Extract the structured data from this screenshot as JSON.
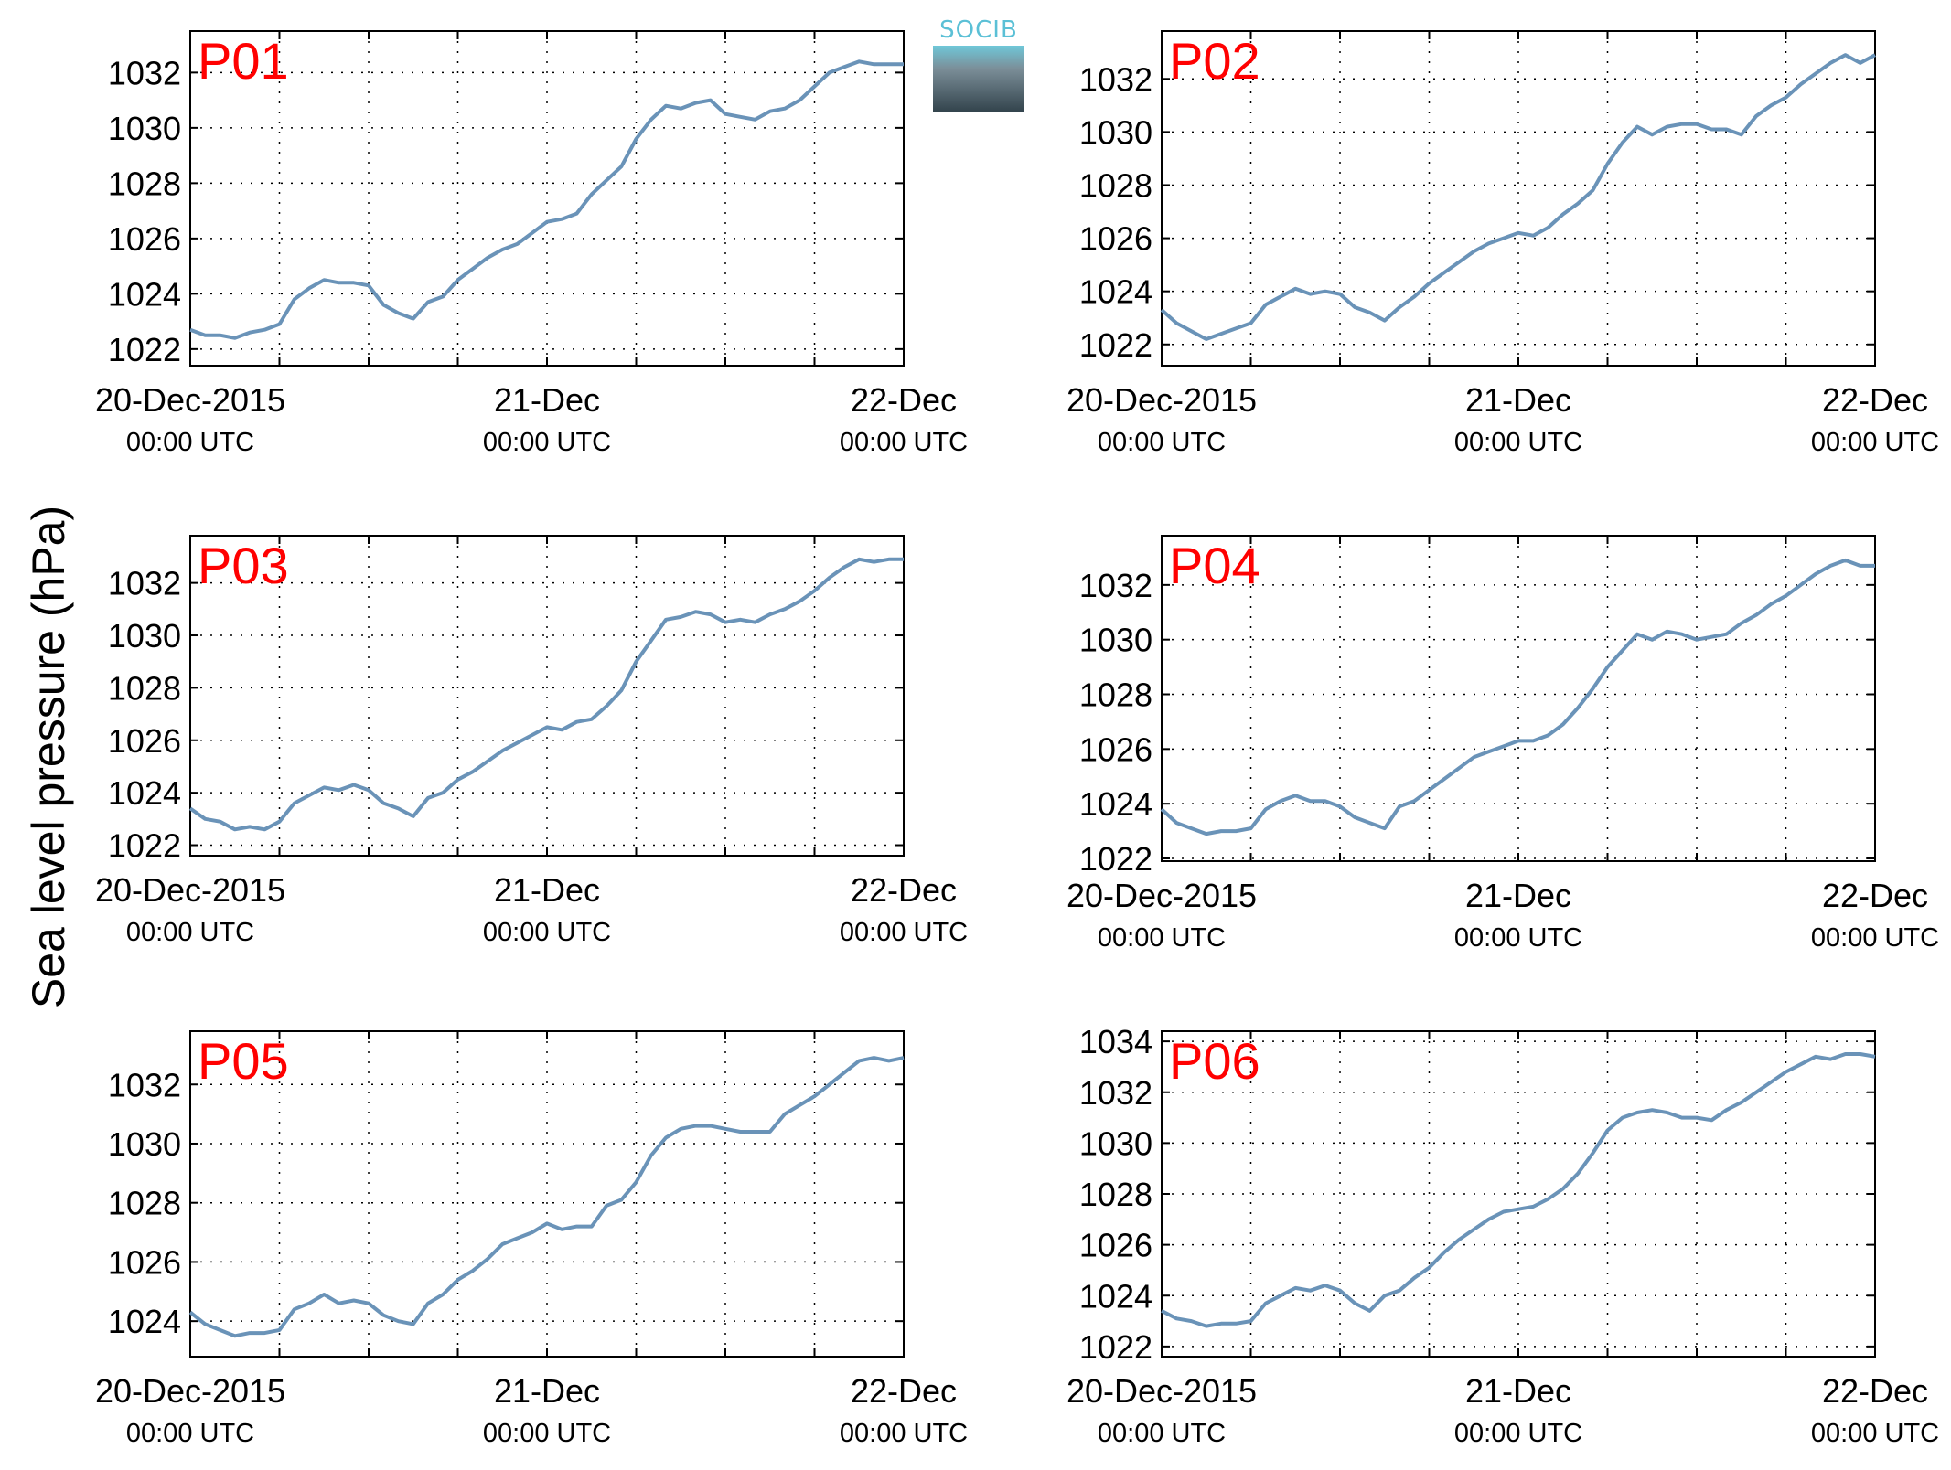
{
  "figure": {
    "ylabel": "Sea level pressure (hPa)",
    "logo_text": "SOCIB",
    "line_color": "#6a93b8",
    "label_color": "#ff0000"
  },
  "chart_data": [
    {
      "type": "line",
      "title": "P01",
      "x_unit": "hours since 20-Dec-2015 00:00 UTC",
      "xlim": [
        0,
        48
      ],
      "ylim": [
        1021.4,
        1033.5
      ],
      "yticks": [
        1022,
        1024,
        1026,
        1028,
        1030,
        1032
      ],
      "xticks": [
        {
          "top": "20-Dec-2015",
          "bottom": "00:00 UTC"
        },
        {
          "top": "21-Dec",
          "bottom": "00:00 UTC"
        },
        {
          "top": "22-Dec",
          "bottom": "00:00 UTC"
        }
      ],
      "grid": true,
      "series": [
        {
          "x": [
            0,
            1,
            2,
            3,
            4,
            5,
            6,
            7,
            8,
            9,
            10,
            11,
            12,
            13,
            14,
            15,
            16,
            17,
            18,
            19,
            20,
            21,
            22,
            23,
            24,
            25,
            26,
            27,
            28,
            29,
            30,
            31,
            32,
            33,
            34,
            35,
            36,
            37,
            38,
            39,
            40,
            41,
            42,
            43,
            44,
            45,
            46,
            47,
            48
          ],
          "y": [
            1022.7,
            1022.5,
            1022.5,
            1022.4,
            1022.6,
            1022.7,
            1022.9,
            1023.8,
            1024.2,
            1024.5,
            1024.4,
            1024.4,
            1024.3,
            1023.6,
            1023.3,
            1023.1,
            1023.7,
            1023.9,
            1024.5,
            1024.9,
            1025.3,
            1025.6,
            1025.8,
            1026.2,
            1026.6,
            1026.7,
            1026.9,
            1027.6,
            1028.1,
            1028.6,
            1029.6,
            1030.3,
            1030.8,
            1030.7,
            1030.9,
            1031.0,
            1030.5,
            1030.4,
            1030.3,
            1030.6,
            1030.7,
            1031.0,
            1031.5,
            1032.0,
            1032.2,
            1032.4,
            1032.3,
            1032.3,
            1032.3
          ]
        }
      ]
    },
    {
      "type": "line",
      "title": "P02",
      "x_unit": "hours since 20-Dec-2015 00:00 UTC",
      "xlim": [
        0,
        48
      ],
      "ylim": [
        1021.2,
        1033.8
      ],
      "yticks": [
        1022,
        1024,
        1026,
        1028,
        1030,
        1032
      ],
      "xticks": [
        {
          "top": "20-Dec-2015",
          "bottom": "00:00 UTC"
        },
        {
          "top": "21-Dec",
          "bottom": "00:00 UTC"
        },
        {
          "top": "22-Dec",
          "bottom": "00:00 UTC"
        }
      ],
      "grid": true,
      "series": [
        {
          "x": [
            0,
            1,
            2,
            3,
            4,
            5,
            6,
            7,
            8,
            9,
            10,
            11,
            12,
            13,
            14,
            15,
            16,
            17,
            18,
            19,
            20,
            21,
            22,
            23,
            24,
            25,
            26,
            27,
            28,
            29,
            30,
            31,
            32,
            33,
            34,
            35,
            36,
            37,
            38,
            39,
            40,
            41,
            42,
            43,
            44,
            45,
            46,
            47,
            48
          ],
          "y": [
            1023.3,
            1022.8,
            1022.5,
            1022.2,
            1022.4,
            1022.6,
            1022.8,
            1023.5,
            1023.8,
            1024.1,
            1023.9,
            1024.0,
            1023.9,
            1023.4,
            1023.2,
            1022.9,
            1023.4,
            1023.8,
            1024.3,
            1024.7,
            1025.1,
            1025.5,
            1025.8,
            1026.0,
            1026.2,
            1026.1,
            1026.4,
            1026.9,
            1027.3,
            1027.8,
            1028.8,
            1029.6,
            1030.2,
            1029.9,
            1030.2,
            1030.3,
            1030.3,
            1030.1,
            1030.1,
            1029.9,
            1030.6,
            1031.0,
            1031.3,
            1031.8,
            1032.2,
            1032.6,
            1032.9,
            1032.6,
            1032.9
          ]
        }
      ]
    },
    {
      "type": "line",
      "title": "P03",
      "x_unit": "hours since 20-Dec-2015 00:00 UTC",
      "xlim": [
        0,
        48
      ],
      "ylim": [
        1021.6,
        1033.8
      ],
      "yticks": [
        1022,
        1024,
        1026,
        1028,
        1030,
        1032
      ],
      "xticks": [
        {
          "top": "20-Dec-2015",
          "bottom": "00:00 UTC"
        },
        {
          "top": "21-Dec",
          "bottom": "00:00 UTC"
        },
        {
          "top": "22-Dec",
          "bottom": "00:00 UTC"
        }
      ],
      "grid": true,
      "series": [
        {
          "x": [
            0,
            1,
            2,
            3,
            4,
            5,
            6,
            7,
            8,
            9,
            10,
            11,
            12,
            13,
            14,
            15,
            16,
            17,
            18,
            19,
            20,
            21,
            22,
            23,
            24,
            25,
            26,
            27,
            28,
            29,
            30,
            31,
            32,
            33,
            34,
            35,
            36,
            37,
            38,
            39,
            40,
            41,
            42,
            43,
            44,
            45,
            46,
            47,
            48
          ],
          "y": [
            1023.4,
            1023.0,
            1022.9,
            1022.6,
            1022.7,
            1022.6,
            1022.9,
            1023.6,
            1023.9,
            1024.2,
            1024.1,
            1024.3,
            1024.1,
            1023.6,
            1023.4,
            1023.1,
            1023.8,
            1024.0,
            1024.5,
            1024.8,
            1025.2,
            1025.6,
            1025.9,
            1026.2,
            1026.5,
            1026.4,
            1026.7,
            1026.8,
            1027.3,
            1027.9,
            1029.0,
            1029.8,
            1030.6,
            1030.7,
            1030.9,
            1030.8,
            1030.5,
            1030.6,
            1030.5,
            1030.8,
            1031.0,
            1031.3,
            1031.7,
            1032.2,
            1032.6,
            1032.9,
            1032.8,
            1032.9,
            1032.9
          ]
        }
      ]
    },
    {
      "type": "line",
      "title": "P04",
      "x_unit": "hours since 20-Dec-2015 00:00 UTC",
      "xlim": [
        0,
        48
      ],
      "ylim": [
        1021.9,
        1033.8
      ],
      "yticks": [
        1022,
        1024,
        1026,
        1028,
        1030,
        1032
      ],
      "xticks": [
        {
          "top": "20-Dec-2015",
          "bottom": "00:00 UTC"
        },
        {
          "top": "21-Dec",
          "bottom": "00:00 UTC"
        },
        {
          "top": "22-Dec",
          "bottom": "00:00 UTC"
        }
      ],
      "grid": true,
      "series": [
        {
          "x": [
            0,
            1,
            2,
            3,
            4,
            5,
            6,
            7,
            8,
            9,
            10,
            11,
            12,
            13,
            14,
            15,
            16,
            17,
            18,
            19,
            20,
            21,
            22,
            23,
            24,
            25,
            26,
            27,
            28,
            29,
            30,
            31,
            32,
            33,
            34,
            35,
            36,
            37,
            38,
            39,
            40,
            41,
            42,
            43,
            44,
            45,
            46,
            47,
            48
          ],
          "y": [
            1023.8,
            1023.3,
            1023.1,
            1022.9,
            1023.0,
            1023.0,
            1023.1,
            1023.8,
            1024.1,
            1024.3,
            1024.1,
            1024.1,
            1023.9,
            1023.5,
            1023.3,
            1023.1,
            1023.9,
            1024.1,
            1024.5,
            1024.9,
            1025.3,
            1025.7,
            1025.9,
            1026.1,
            1026.3,
            1026.3,
            1026.5,
            1026.9,
            1027.5,
            1028.2,
            1029.0,
            1029.6,
            1030.2,
            1030.0,
            1030.3,
            1030.2,
            1030.0,
            1030.1,
            1030.2,
            1030.6,
            1030.9,
            1031.3,
            1031.6,
            1032.0,
            1032.4,
            1032.7,
            1032.9,
            1032.7,
            1032.7
          ]
        }
      ]
    },
    {
      "type": "line",
      "title": "P05",
      "x_unit": "hours since 20-Dec-2015 00:00 UTC",
      "xlim": [
        0,
        48
      ],
      "ylim": [
        1022.8,
        1033.8
      ],
      "yticks": [
        1024,
        1026,
        1028,
        1030,
        1032
      ],
      "xticks": [
        {
          "top": "20-Dec-2015",
          "bottom": "00:00 UTC"
        },
        {
          "top": "21-Dec",
          "bottom": "00:00 UTC"
        },
        {
          "top": "22-Dec",
          "bottom": "00:00 UTC"
        }
      ],
      "grid": true,
      "series": [
        {
          "x": [
            0,
            1,
            2,
            3,
            4,
            5,
            6,
            7,
            8,
            9,
            10,
            11,
            12,
            13,
            14,
            15,
            16,
            17,
            18,
            19,
            20,
            21,
            22,
            23,
            24,
            25,
            26,
            27,
            28,
            29,
            30,
            31,
            32,
            33,
            34,
            35,
            36,
            37,
            38,
            39,
            40,
            41,
            42,
            43,
            44,
            45,
            46,
            47,
            48
          ],
          "y": [
            1024.3,
            1023.9,
            1023.7,
            1023.5,
            1023.6,
            1023.6,
            1023.7,
            1024.4,
            1024.6,
            1024.9,
            1024.6,
            1024.7,
            1024.6,
            1024.2,
            1024.0,
            1023.9,
            1024.6,
            1024.9,
            1025.4,
            1025.7,
            1026.1,
            1026.6,
            1026.8,
            1027.0,
            1027.3,
            1027.1,
            1027.2,
            1027.2,
            1027.9,
            1028.1,
            1028.7,
            1029.6,
            1030.2,
            1030.5,
            1030.6,
            1030.6,
            1030.5,
            1030.4,
            1030.4,
            1030.4,
            1031.0,
            1031.3,
            1031.6,
            1032.0,
            1032.4,
            1032.8,
            1032.9,
            1032.8,
            1032.9
          ]
        }
      ]
    },
    {
      "type": "line",
      "title": "P06",
      "x_unit": "hours since 20-Dec-2015 00:00 UTC",
      "xlim": [
        0,
        48
      ],
      "ylim": [
        1021.6,
        1034.4
      ],
      "yticks": [
        1022,
        1024,
        1026,
        1028,
        1030,
        1032,
        1034
      ],
      "xticks": [
        {
          "top": "20-Dec-2015",
          "bottom": "00:00 UTC"
        },
        {
          "top": "21-Dec",
          "bottom": "00:00 UTC"
        },
        {
          "top": "22-Dec",
          "bottom": "00:00 UTC"
        }
      ],
      "grid": true,
      "series": [
        {
          "x": [
            0,
            1,
            2,
            3,
            4,
            5,
            6,
            7,
            8,
            9,
            10,
            11,
            12,
            13,
            14,
            15,
            16,
            17,
            18,
            19,
            20,
            21,
            22,
            23,
            24,
            25,
            26,
            27,
            28,
            29,
            30,
            31,
            32,
            33,
            34,
            35,
            36,
            37,
            38,
            39,
            40,
            41,
            42,
            43,
            44,
            45,
            46,
            47,
            48
          ],
          "y": [
            1023.4,
            1023.1,
            1023.0,
            1022.8,
            1022.9,
            1022.9,
            1023.0,
            1023.7,
            1024.0,
            1024.3,
            1024.2,
            1024.4,
            1024.2,
            1023.7,
            1023.4,
            1024.0,
            1024.2,
            1024.7,
            1025.1,
            1025.7,
            1026.2,
            1026.6,
            1027.0,
            1027.3,
            1027.4,
            1027.5,
            1027.8,
            1028.2,
            1028.8,
            1029.6,
            1030.5,
            1031.0,
            1031.2,
            1031.3,
            1031.2,
            1031.0,
            1031.0,
            1030.9,
            1031.3,
            1031.6,
            1032.0,
            1032.4,
            1032.8,
            1033.1,
            1033.4,
            1033.3,
            1033.5,
            1033.5,
            1033.4
          ]
        }
      ]
    }
  ]
}
